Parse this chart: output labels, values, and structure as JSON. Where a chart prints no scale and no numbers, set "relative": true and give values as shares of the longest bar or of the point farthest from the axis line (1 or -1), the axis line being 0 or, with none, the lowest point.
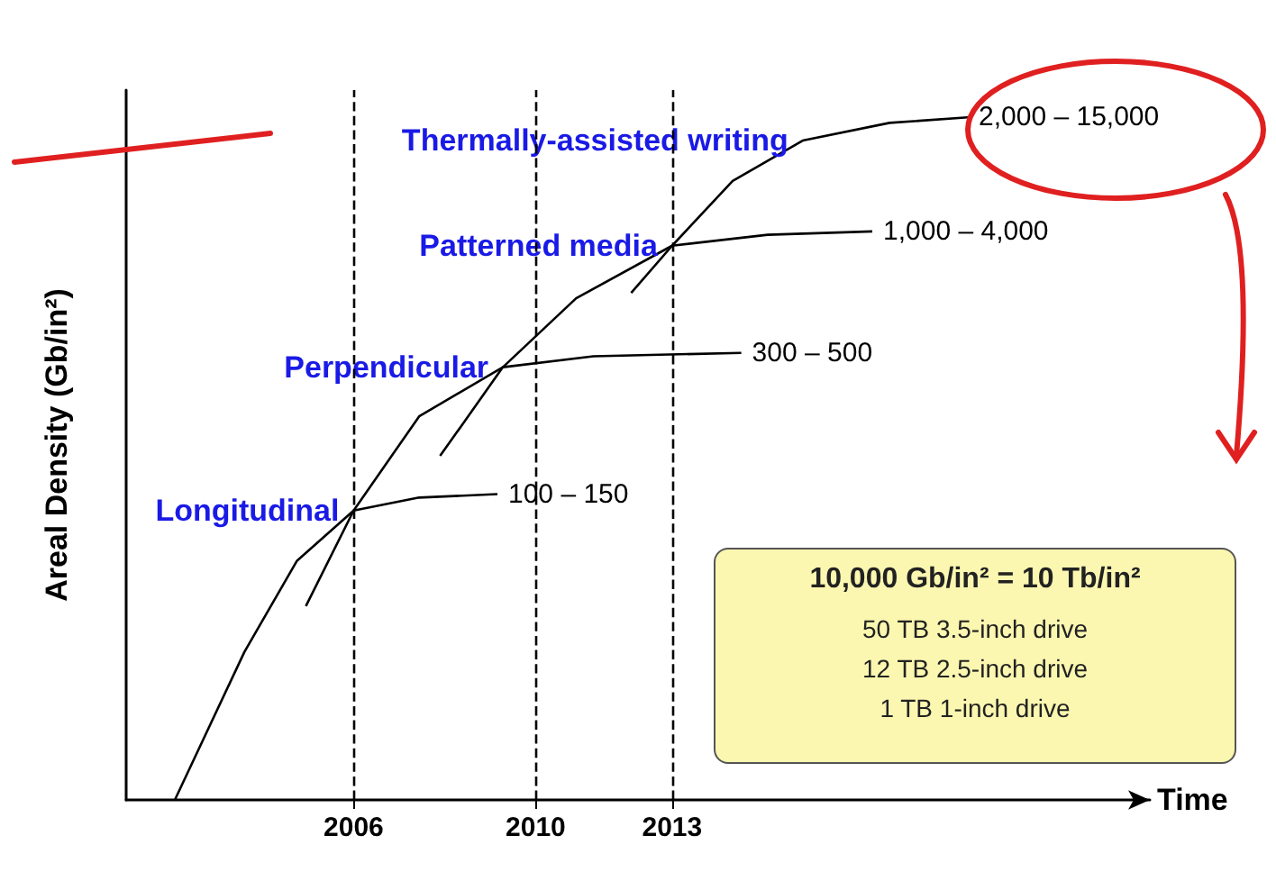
{
  "chart_data": {
    "type": "line",
    "relative": true,
    "xlabel": "Time",
    "ylabel": "Areal Density (Gb/in²)",
    "xlim": [
      2001,
      2023.5
    ],
    "xticks": [
      2006,
      2010,
      2013
    ],
    "grid": false,
    "legend": false,
    "marker": "none",
    "line_style": "solid",
    "series": [
      {
        "name": "Longitudinal",
        "color": "#000000",
        "x": [
          2002.07,
          2003.6,
          2004.75,
          2006,
          2007.44,
          2009.16
        ],
        "values": [
          0,
          0.217,
          0.35,
          0.424,
          0.443,
          0.448
        ]
      },
      {
        "name": "Perpendicular",
        "color": "#000000",
        "x": [
          2004.95,
          2006,
          2007.44,
          2009.28,
          2011.27,
          2014.52
        ],
        "values": [
          0.284,
          0.424,
          0.562,
          0.634,
          0.65,
          0.655
        ]
      },
      {
        "name": "Patterned media",
        "color": "#000000",
        "x": [
          2007.9,
          2009.28,
          2010.89,
          2013,
          2015.1,
          2017.4
        ],
        "values": [
          0.504,
          0.634,
          0.735,
          0.812,
          0.828,
          0.833
        ]
      },
      {
        "name": "Thermally-assisted writing",
        "color": "#000000",
        "x": [
          2012.1,
          2013,
          2014.33,
          2015.87,
          2017.78,
          2019.5
        ],
        "values": [
          0.743,
          0.812,
          0.907,
          0.966,
          0.992,
          1
        ]
      }
    ],
    "ref_lines": [
      {
        "axis": "x",
        "value": 2006,
        "label": null,
        "line_style": "dashed",
        "color": "#000000"
      },
      {
        "axis": "x",
        "value": 2010,
        "label": null,
        "line_style": "dashed",
        "color": "#000000"
      },
      {
        "axis": "x",
        "value": 2013,
        "label": null,
        "line_style": "dashed",
        "color": "#000000"
      }
    ],
    "annotations": [
      {
        "text": "100 – 150",
        "x": 2009.16,
        "y": 0.448
      },
      {
        "text": "300 – 500",
        "x": 2014.52,
        "y": 0.655
      },
      {
        "text": "1,000 – 4,000",
        "x": 2017.4,
        "y": 0.833
      },
      {
        "text": "2,000 – 15,000",
        "x": 2019.5,
        "y": 1
      },
      "10,000 Gb/in² = 10 Tb/in²",
      "50 TB 3.5-inch drive",
      "12 TB 2.5-inch drive",
      "1 TB 1-inch drive"
    ]
  }
}
